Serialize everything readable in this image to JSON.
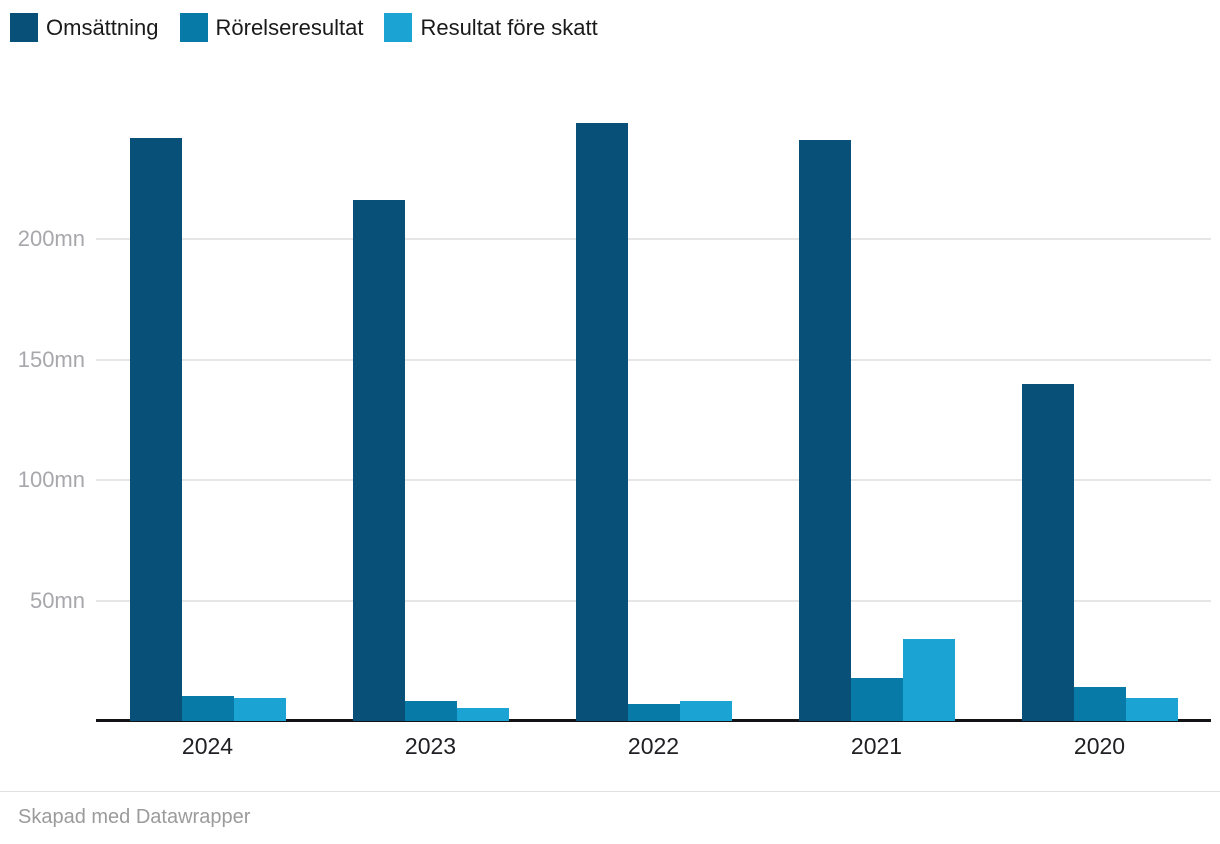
{
  "chart_data": {
    "type": "bar",
    "grouped": true,
    "categories": [
      "2024",
      "2023",
      "2022",
      "2021",
      "2020"
    ],
    "series": [
      {
        "name": "Omsättning",
        "color": "#085078",
        "values": [
          242,
          216,
          248,
          241,
          140
        ]
      },
      {
        "name": "Rörelseresultat",
        "color": "#077aa8",
        "values": [
          10.5,
          8.5,
          7,
          18,
          14
        ]
      },
      {
        "name": "Resultat före skatt",
        "color": "#1ba3d3",
        "values": [
          9.5,
          5.5,
          8.5,
          34,
          9.5
        ]
      }
    ],
    "unit": "mn",
    "y_ticks": [
      {
        "value": 50,
        "label": "50mn"
      },
      {
        "value": 100,
        "label": "100mn"
      },
      {
        "value": 150,
        "label": "150mn"
      },
      {
        "value": 200,
        "label": "200mn"
      }
    ],
    "ylim": [
      0,
      250
    ],
    "grid": true,
    "legend_position": "top-left",
    "xlabel": "",
    "ylabel": ""
  },
  "footer": {
    "credit": "Skapad med Datawrapper"
  }
}
